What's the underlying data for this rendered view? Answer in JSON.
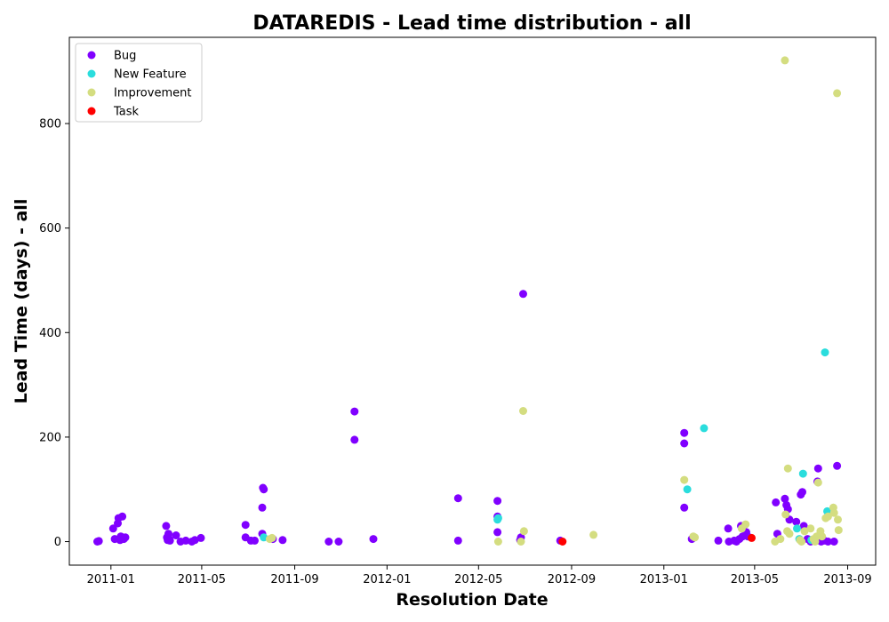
{
  "chart_data": {
    "type": "scatter",
    "title": "DATAREDIS - Lead time distribution - all",
    "xlabel": "Resolution Date",
    "ylabel": "Lead Time (days) - all",
    "xlim": [
      "2010-11-07",
      "2013-10-08"
    ],
    "ylim": [
      -45,
      965
    ],
    "x_ticks": [
      "2011-01",
      "2011-05",
      "2011-09",
      "2012-01",
      "2012-05",
      "2012-09",
      "2013-01",
      "2013-05",
      "2013-09"
    ],
    "y_ticks": [
      0,
      200,
      400,
      600,
      800
    ],
    "grid": false,
    "legend_position": "top-left",
    "series": [
      {
        "name": "Bug",
        "color": "#8000ff",
        "points": [
          [
            "2010-12-14",
            0
          ],
          [
            "2010-12-16",
            1
          ],
          [
            "2011-01-04",
            25
          ],
          [
            "2011-01-06",
            5
          ],
          [
            "2011-01-10",
            35
          ],
          [
            "2011-01-11",
            45
          ],
          [
            "2011-01-13",
            3
          ],
          [
            "2011-01-14",
            10
          ],
          [
            "2011-01-16",
            48
          ],
          [
            "2011-01-18",
            5
          ],
          [
            "2011-01-20",
            8
          ],
          [
            "2011-03-15",
            30
          ],
          [
            "2011-03-16",
            8
          ],
          [
            "2011-03-17",
            3
          ],
          [
            "2011-03-18",
            15
          ],
          [
            "2011-03-19",
            5
          ],
          [
            "2011-03-20",
            2
          ],
          [
            "2011-03-28",
            12
          ],
          [
            "2011-04-03",
            0
          ],
          [
            "2011-04-10",
            2
          ],
          [
            "2011-04-18",
            0
          ],
          [
            "2011-04-22",
            3
          ],
          [
            "2011-04-30",
            7
          ],
          [
            "2011-06-28",
            32
          ],
          [
            "2011-06-28",
            8
          ],
          [
            "2011-07-05",
            2
          ],
          [
            "2011-07-10",
            2
          ],
          [
            "2011-07-20",
            15
          ],
          [
            "2011-07-21",
            103
          ],
          [
            "2011-07-22",
            100
          ],
          [
            "2011-07-20",
            65
          ],
          [
            "2011-08-03",
            5
          ],
          [
            "2011-08-16",
            3
          ],
          [
            "2011-10-16",
            0
          ],
          [
            "2011-10-29",
            0
          ],
          [
            "2011-11-19",
            249
          ],
          [
            "2011-11-19",
            195
          ],
          [
            "2011-12-14",
            5
          ],
          [
            "2012-04-04",
            83
          ],
          [
            "2012-04-04",
            2
          ],
          [
            "2012-05-26",
            78
          ],
          [
            "2012-05-26",
            48
          ],
          [
            "2012-05-26",
            18
          ],
          [
            "2012-06-29",
            474
          ],
          [
            "2012-06-25",
            3
          ],
          [
            "2012-06-26",
            8
          ],
          [
            "2012-08-17",
            2
          ],
          [
            "2013-01-28",
            208
          ],
          [
            "2013-01-28",
            188
          ],
          [
            "2013-01-28",
            65
          ],
          [
            "2013-02-07",
            5
          ],
          [
            "2013-03-14",
            2
          ],
          [
            "2013-03-27",
            25
          ],
          [
            "2013-03-28",
            0
          ],
          [
            "2013-04-04",
            2
          ],
          [
            "2013-04-07",
            0
          ],
          [
            "2013-04-11",
            5
          ],
          [
            "2013-04-13",
            30
          ],
          [
            "2013-04-15",
            10
          ],
          [
            "2013-04-20",
            18
          ],
          [
            "2013-04-22",
            10
          ],
          [
            "2013-05-29",
            75
          ],
          [
            "2013-05-31",
            15
          ],
          [
            "2013-06-10",
            82
          ],
          [
            "2013-06-12",
            70
          ],
          [
            "2013-06-14",
            62
          ],
          [
            "2013-06-16",
            42
          ],
          [
            "2013-06-25",
            38
          ],
          [
            "2013-07-01",
            90
          ],
          [
            "2013-07-03",
            95
          ],
          [
            "2013-07-05",
            30
          ],
          [
            "2013-07-10",
            5
          ],
          [
            "2013-07-14",
            0
          ],
          [
            "2013-07-20",
            5
          ],
          [
            "2013-07-24",
            140
          ],
          [
            "2013-07-23",
            115
          ],
          [
            "2013-07-28",
            0
          ],
          [
            "2013-08-01",
            2
          ],
          [
            "2013-08-06",
            0
          ],
          [
            "2013-08-14",
            0
          ],
          [
            "2013-08-18",
            145
          ]
        ]
      },
      {
        "name": "New Feature",
        "color": "#2adddd",
        "points": [
          [
            "2011-07-22",
            8
          ],
          [
            "2012-05-26",
            42
          ],
          [
            "2012-05-27",
            45
          ],
          [
            "2013-02-01",
            100
          ],
          [
            "2013-02-23",
            217
          ],
          [
            "2013-06-26",
            25
          ],
          [
            "2013-06-29",
            5
          ],
          [
            "2013-07-04",
            130
          ],
          [
            "2013-08-02",
            362
          ],
          [
            "2013-08-05",
            58
          ],
          [
            "2013-07-15",
            3
          ]
        ]
      },
      {
        "name": "Improvement",
        "color": "#d4dd80",
        "points": [
          [
            "2011-07-30",
            5
          ],
          [
            "2011-08-02",
            7
          ],
          [
            "2012-05-27",
            0
          ],
          [
            "2012-06-26",
            0
          ],
          [
            "2012-06-29",
            250
          ],
          [
            "2012-06-30",
            20
          ],
          [
            "2012-09-30",
            13
          ],
          [
            "2013-01-28",
            118
          ],
          [
            "2013-02-09",
            10
          ],
          [
            "2013-02-11",
            8
          ],
          [
            "2013-04-14",
            25
          ],
          [
            "2013-04-19",
            33
          ],
          [
            "2013-05-28",
            0
          ],
          [
            "2013-06-04",
            5
          ],
          [
            "2013-06-10",
            921
          ],
          [
            "2013-06-11",
            52
          ],
          [
            "2013-06-13",
            20
          ],
          [
            "2013-06-14",
            140
          ],
          [
            "2013-06-16",
            15
          ],
          [
            "2013-06-30",
            3
          ],
          [
            "2013-07-02",
            0
          ],
          [
            "2013-07-06",
            20
          ],
          [
            "2013-07-14",
            25
          ],
          [
            "2013-07-18",
            5
          ],
          [
            "2013-07-20",
            0
          ],
          [
            "2013-07-22",
            10
          ],
          [
            "2013-07-24",
            113
          ],
          [
            "2013-07-27",
            20
          ],
          [
            "2013-07-29",
            10
          ],
          [
            "2013-08-03",
            45
          ],
          [
            "2013-08-06",
            48
          ],
          [
            "2013-08-13",
            65
          ],
          [
            "2013-08-14",
            55
          ],
          [
            "2013-08-18",
            858
          ],
          [
            "2013-08-19",
            42
          ],
          [
            "2013-08-20",
            22
          ]
        ]
      },
      {
        "name": "Task",
        "color": "#ff0000",
        "points": [
          [
            "2012-08-20",
            0
          ],
          [
            "2013-04-27",
            7
          ]
        ]
      }
    ]
  }
}
